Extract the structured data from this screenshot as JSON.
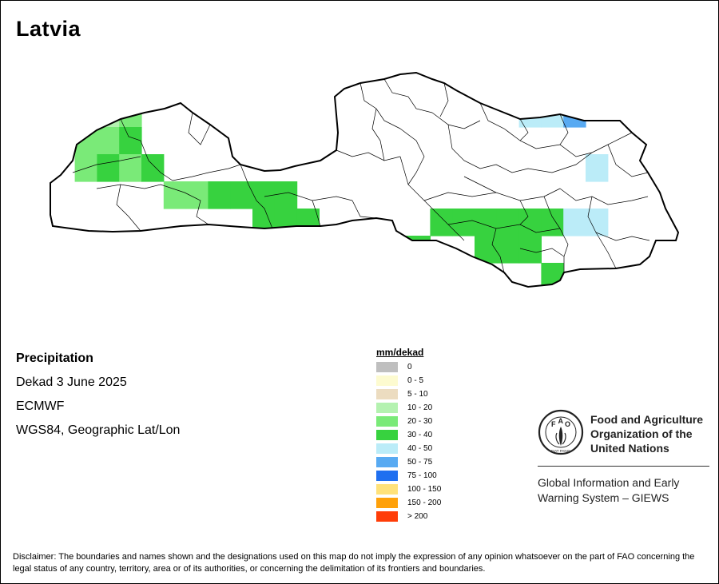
{
  "title": "Latvia",
  "info": {
    "variable": "Precipitation",
    "period": "Dekad 3 June 2025",
    "source": "ECMWF",
    "projection": "WGS84, Geographic Lat/Lon"
  },
  "legend": {
    "title": "mm/dekad",
    "classes": [
      {
        "label": "0",
        "color": "#bfbfbf"
      },
      {
        "label": "0 - 5",
        "color": "#fdfbd0"
      },
      {
        "label": "5 - 10",
        "color": "#ecdcc0"
      },
      {
        "label": "10 - 20",
        "color": "#b4f2b0"
      },
      {
        "label": "20 - 30",
        "color": "#7aea78"
      },
      {
        "label": "30 - 40",
        "color": "#37d23f"
      },
      {
        "label": "40 - 50",
        "color": "#bbecf8"
      },
      {
        "label": "50 - 75",
        "color": "#58aaf2"
      },
      {
        "label": "75 - 100",
        "color": "#1f6ff0"
      },
      {
        "label": "100 - 150",
        "color": "#ffe27a"
      },
      {
        "label": "150 - 200",
        "color": "#ffa10a"
      },
      {
        "label": "> 200",
        "color": "#ff3d08"
      }
    ]
  },
  "org": {
    "name_lines": [
      "Food and Agriculture",
      "Organization of the",
      "United Nations"
    ],
    "system_lines": [
      "Global Information and Early",
      "Warning System – GIEWS"
    ],
    "logo_letters": [
      "F",
      "A",
      "O"
    ],
    "logo_ring": "FIAT PANIS"
  },
  "disclaimer": "Disclaimer: The boundaries and names shown and the designations used on this map do not imply the expression of any opinion whatsoever on the part of FAO concerning the legal status of any country, territory, area or of its authorities, or concerning the delimitation of its frontiers and boundaries.",
  "precip_grid": {
    "columns": 29,
    "rows": 8,
    "classes": [
      "-----------------------666---",
      "---34-----------------667----",
      "--445------------------------",
      "--4545-------------------6---",
      "------445555-----------------",
      "----------555-----55555566---",
      "-------4-------555--555-------",
      "-----------------------5-----"
    ]
  }
}
